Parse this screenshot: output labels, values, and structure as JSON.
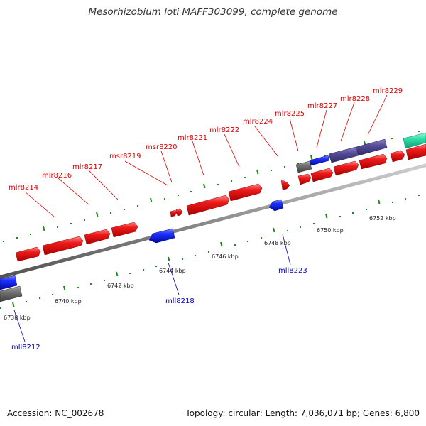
{
  "title": "Mesorhizobium loti MAFF303099, complete genome",
  "accession": "Accession: NC_002678",
  "genome_info": "Topology: circular; Length: 7,036,071 bp; Genes: 6,800",
  "colors": {
    "forward_gene": "#e81010",
    "reverse_gene": "#0a1ee6",
    "backbone": "#8c8c8c",
    "tick_green": "#1a8a1a",
    "label_forward": "#e00000",
    "label_reverse": "#0000b4",
    "purple_gene": "#554c98",
    "teal_gene": "#2de0a8",
    "gray_gene": "#6e6e6e"
  },
  "forward_labels": [
    "mlr8214",
    "mlr8216",
    "mlr8217",
    "msr8219",
    "msr8220",
    "mlr8221",
    "mlr8222",
    "mlr8224",
    "mlr8225",
    "mlr8227",
    "mlr8228",
    "mlr8229"
  ],
  "reverse_labels": [
    "mll8212",
    "mll8218",
    "mll8223"
  ],
  "scale_labels": [
    "6738 kbp",
    "6740 kbp",
    "6742 kbp",
    "6744 kbp",
    "6746 kbp",
    "6748 kbp",
    "6750 kbp",
    "6752 kbp"
  ]
}
